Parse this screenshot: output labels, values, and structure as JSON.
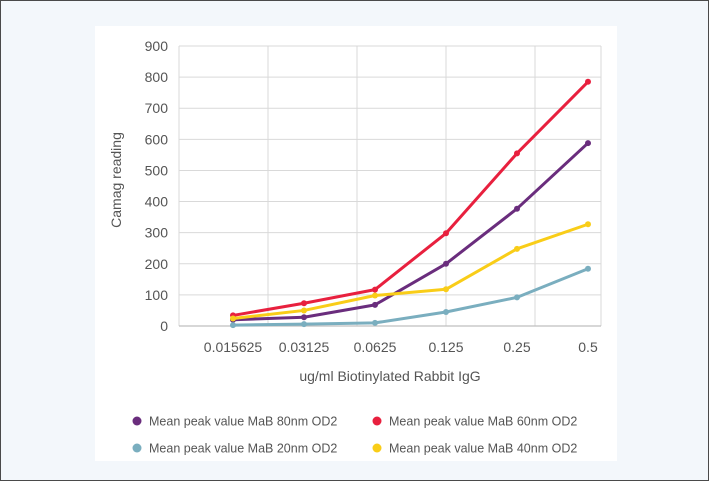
{
  "chart_data": {
    "type": "line",
    "categories": [
      "0.015625",
      "0.03125",
      "0.0625",
      "0.125",
      "0.25",
      "0.5"
    ],
    "xlabel": "ug/ml Biotinylated Rabbit IgG",
    "ylabel": "Camag reading",
    "ylim": [
      0,
      900
    ],
    "yticks": [
      0,
      100,
      200,
      300,
      400,
      500,
      600,
      700,
      800,
      900
    ],
    "grid": true,
    "legend_position": "bottom",
    "series": [
      {
        "name": "Mean peak value MaB 80nm OD2",
        "color": "#6a2d7d",
        "values": [
          20,
          28,
          68,
          200,
          377,
          588
        ]
      },
      {
        "name": "Mean peak value MaB 60nm OD2",
        "color": "#e8203e",
        "values": [
          34,
          73,
          117,
          298,
          555,
          785
        ]
      },
      {
        "name": "Mean peak value MaB 20nm OD2",
        "color": "#7aaebf",
        "values": [
          3,
          6,
          10,
          45,
          92,
          184
        ]
      },
      {
        "name": "Mean peak value MaB 40nm OD2",
        "color": "#f9cd18",
        "values": [
          24,
          50,
          98,
          118,
          248,
          327
        ]
      }
    ]
  }
}
